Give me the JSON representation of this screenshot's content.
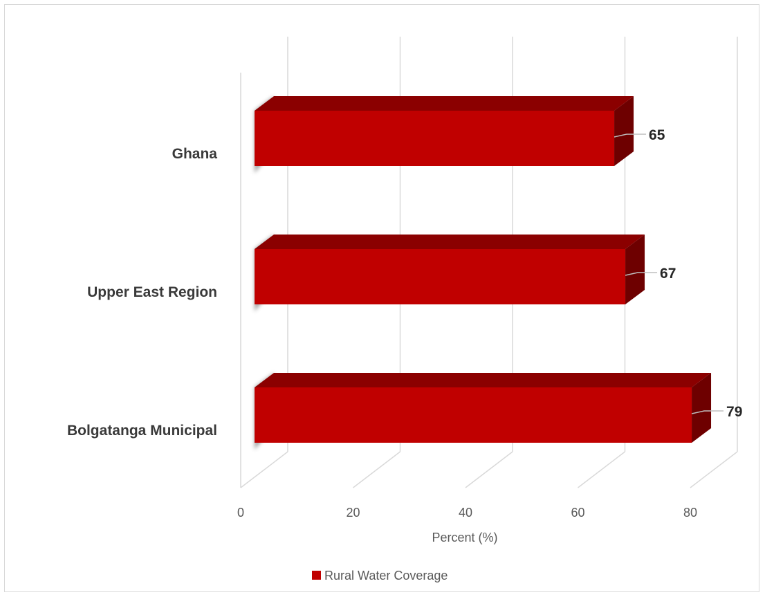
{
  "chart_data": {
    "type": "bar",
    "orientation": "horizontal",
    "three_d": true,
    "categories": [
      "Ghana",
      "Upper East Region",
      "Bolgatanga Municipal"
    ],
    "series": [
      {
        "name": "Rural Water Coverage",
        "values": [
          65,
          67,
          79
        ],
        "color": "#c00000"
      }
    ],
    "xlabel": "Percent (%)",
    "ylabel": "",
    "xlim": [
      0,
      80
    ],
    "x_ticks": [
      0,
      20,
      40,
      60,
      80
    ],
    "x_tick_labels": [
      "0",
      "20",
      "40",
      "60",
      "80"
    ],
    "data_labels": [
      "65",
      "67",
      "79"
    ],
    "grid": true,
    "legend_position": "bottom"
  }
}
